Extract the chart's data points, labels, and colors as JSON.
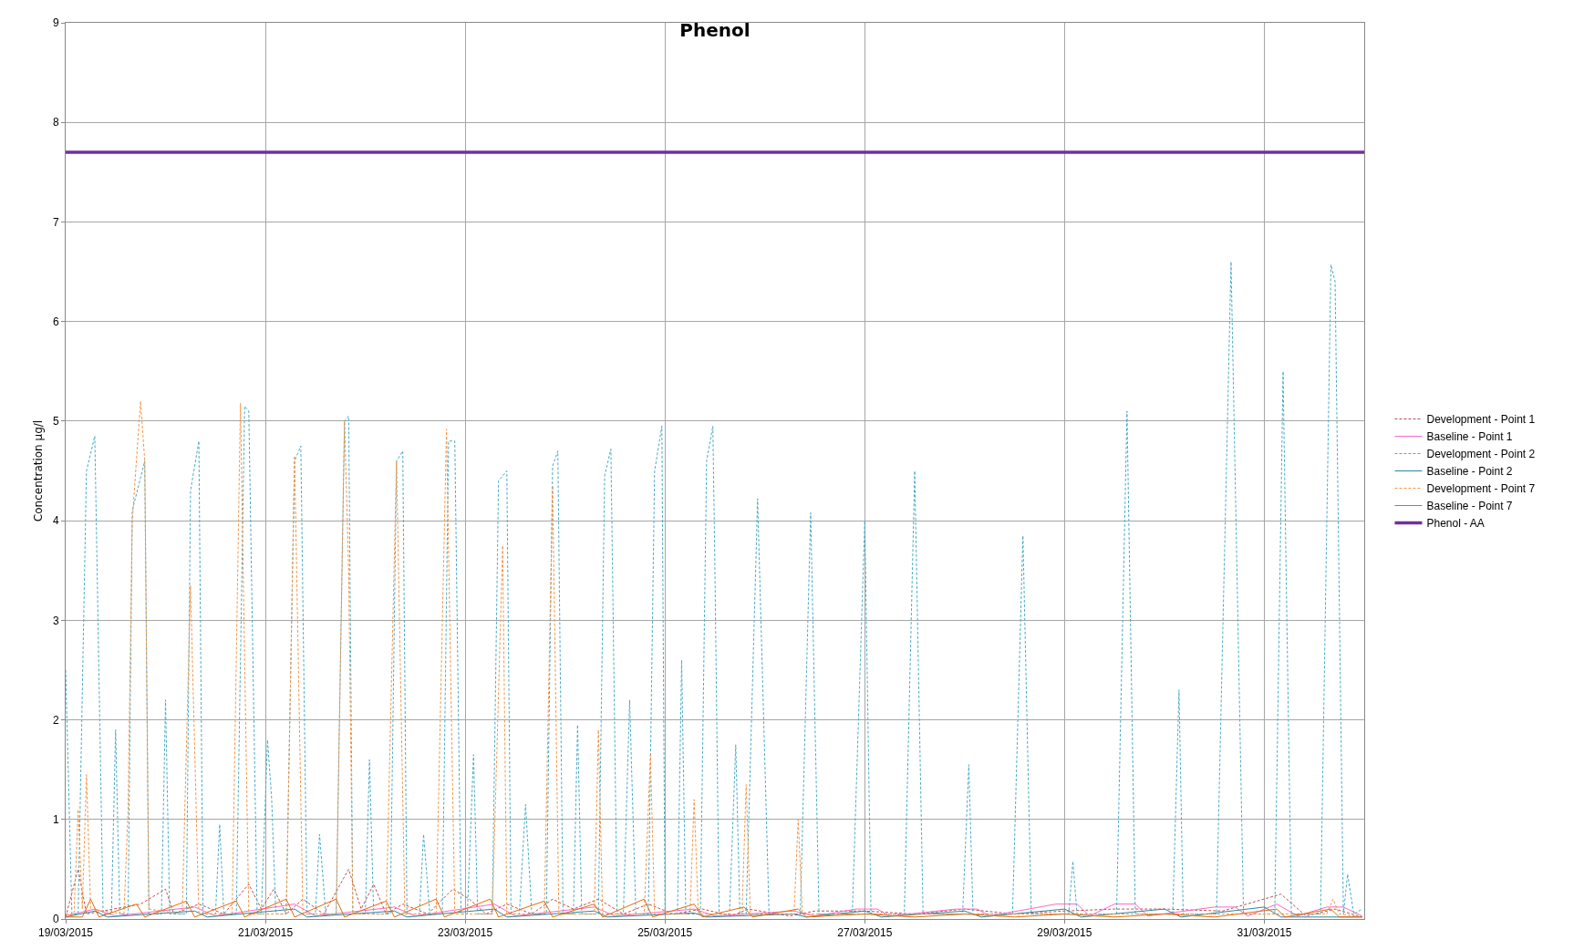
{
  "chart_data": {
    "type": "line",
    "title": "Phenol",
    "ylabel": "Concentration µg/l",
    "xlim": [
      "2015-03-19",
      "2015-04-01"
    ],
    "xticks": [
      {
        "value": "2015-03-19",
        "label": "19/03/2015"
      },
      {
        "value": "2015-03-21",
        "label": "21/03/2015"
      },
      {
        "value": "2015-03-23",
        "label": "23/03/2015"
      },
      {
        "value": "2015-03-25",
        "label": "25/03/2015"
      },
      {
        "value": "2015-03-27",
        "label": "27/03/2015"
      },
      {
        "value": "2015-03-29",
        "label": "29/03/2015"
      },
      {
        "value": "2015-03-31",
        "label": "31/03/2015"
      }
    ],
    "ylim": [
      0,
      9
    ],
    "yticks": [
      0,
      1,
      2,
      3,
      4,
      5,
      6,
      7,
      8,
      9
    ],
    "grid": true,
    "legend": "right",
    "marker": "none",
    "series": [
      {
        "name": "Development - Point 1",
        "color": "#c0504d",
        "line_style": "dashed",
        "x": [
          "2015-03-19T00:00",
          "2015-03-19T03:00",
          "2015-03-19T05:00",
          "2015-03-19T18:00",
          "2015-03-20T00:00",
          "2015-03-20T02:00",
          "2015-03-20T08:00",
          "2015-03-20T14:00",
          "2015-03-20T20:00",
          "2015-03-20T23:00",
          "2015-03-21T02:00",
          "2015-03-21T05:00",
          "2015-03-21T09:00",
          "2015-03-21T14:00",
          "2015-03-21T20:00",
          "2015-03-21T23:00",
          "2015-03-22T02:00",
          "2015-03-22T05:00",
          "2015-03-22T09:00",
          "2015-03-22T15:00",
          "2015-03-22T21:00",
          "2015-03-23T01:00",
          "2015-03-23T05:00",
          "2015-03-23T10:00",
          "2015-03-23T16:00",
          "2015-03-23T21:00",
          "2015-03-24T02:00",
          "2015-03-24T08:00",
          "2015-03-24T14:00",
          "2015-03-24T20:00",
          "2015-03-25T02:00",
          "2015-03-25T09:00",
          "2015-03-25T16:00",
          "2015-03-25T20:00",
          "2015-03-26T06:00",
          "2015-03-26T12:00",
          "2015-03-27T00:00",
          "2015-03-27T12:00",
          "2015-03-28T00:00",
          "2015-03-28T12:00",
          "2015-03-29T00:00",
          "2015-03-29T12:00",
          "2015-03-30T00:00",
          "2015-03-30T14:00",
          "2015-03-31T04:00",
          "2015-03-31T10:00",
          "2015-03-31T17:00",
          "2015-03-31T23:30"
        ],
        "values": [
          0.02,
          0.5,
          0.05,
          0.15,
          0.3,
          0.05,
          0.15,
          0.05,
          0.35,
          0.1,
          0.3,
          0.05,
          0.2,
          0.05,
          0.5,
          0.1,
          0.35,
          0.05,
          0.15,
          0.05,
          0.3,
          0.2,
          0.05,
          0.15,
          0.05,
          0.2,
          0.1,
          0.2,
          0.05,
          0.15,
          0.05,
          0.1,
          0.03,
          0.1,
          0.03,
          0.08,
          0.08,
          0.05,
          0.1,
          0.05,
          0.08,
          0.1,
          0.1,
          0.08,
          0.25,
          0.03,
          0.1,
          0.02
        ]
      },
      {
        "name": "Baseline - Point 1",
        "color": "#ff66cc",
        "line_style": "solid",
        "x": [
          "2015-03-19T00:00",
          "2015-03-19T07:00",
          "2015-03-19T12:00",
          "2015-03-20T07:00",
          "2015-03-20T12:00",
          "2015-03-21T07:00",
          "2015-03-21T12:00",
          "2015-03-22T07:00",
          "2015-03-22T12:00",
          "2015-03-23T07:00",
          "2015-03-23T12:00",
          "2015-03-24T07:00",
          "2015-03-24T12:00",
          "2015-03-25T07:00",
          "2015-03-25T12:00",
          "2015-03-26T07:00",
          "2015-03-26T12:00",
          "2015-03-26T22:00",
          "2015-03-27T03:00",
          "2015-03-27T06:00",
          "2015-03-27T22:00",
          "2015-03-28T03:00",
          "2015-03-28T06:00",
          "2015-03-28T22:00",
          "2015-03-29T03:00",
          "2015-03-29T06:00",
          "2015-03-29T12:00",
          "2015-03-29T17:00",
          "2015-03-29T20:00",
          "2015-03-30T12:00",
          "2015-03-30T17:00",
          "2015-03-30T20:00",
          "2015-03-31T03:00",
          "2015-03-31T08:00",
          "2015-03-31T15:00",
          "2015-03-31T19:00",
          "2015-03-31T23:30"
        ],
        "values": [
          0.03,
          0.1,
          0.03,
          0.12,
          0.03,
          0.15,
          0.03,
          0.12,
          0.03,
          0.15,
          0.03,
          0.12,
          0.03,
          0.1,
          0.03,
          0.08,
          0.03,
          0.1,
          0.1,
          0.03,
          0.1,
          0.1,
          0.03,
          0.15,
          0.15,
          0.03,
          0.15,
          0.15,
          0.03,
          0.12,
          0.12,
          0.03,
          0.15,
          0.03,
          0.12,
          0.12,
          0.03
        ]
      },
      {
        "name": "Development - Point 2",
        "color": "#4bacc6",
        "line_style": "dashed",
        "x": [
          "2015-03-19T00:00",
          "2015-03-19T01:30",
          "2015-03-19T03:00",
          "2015-03-19T05:00",
          "2015-03-19T07:00",
          "2015-03-19T09:00",
          "2015-03-19T11:00",
          "2015-03-19T12:00",
          "2015-03-19T13:00",
          "2015-03-19T15:00",
          "2015-03-19T16:00",
          "2015-03-19T19:00",
          "2015-03-19T20:00",
          "2015-03-19T23:00",
          "2015-03-20T00:00",
          "2015-03-20T01:00",
          "2015-03-20T05:00",
          "2015-03-20T06:00",
          "2015-03-20T08:00",
          "2015-03-20T09:00",
          "2015-03-20T12:00",
          "2015-03-20T13:00",
          "2015-03-20T14:00",
          "2015-03-20T17:00",
          "2015-03-20T19:00",
          "2015-03-20T20:00",
          "2015-03-20T22:00",
          "2015-03-20T23:00",
          "2015-03-21T00:30",
          "2015-03-21T01:30",
          "2015-03-21T02:30",
          "2015-03-21T05:00",
          "2015-03-21T07:00",
          "2015-03-21T08:30",
          "2015-03-21T10:00",
          "2015-03-21T12:00",
          "2015-03-21T13:00",
          "2015-03-21T14:30",
          "2015-03-21T17:00",
          "2015-03-21T19:00",
          "2015-03-21T20:00",
          "2015-03-21T21:00",
          "2015-03-22T00:00",
          "2015-03-22T01:00",
          "2015-03-22T02:00",
          "2015-03-22T06:00",
          "2015-03-22T07:30",
          "2015-03-22T09:00",
          "2015-03-22T10:00",
          "2015-03-22T13:00",
          "2015-03-22T14:00",
          "2015-03-22T15:30",
          "2015-03-22T18:30",
          "2015-03-22T20:00",
          "2015-03-22T21:30",
          "2015-03-22T23:00",
          "2015-03-23T00:30",
          "2015-03-23T02:00",
          "2015-03-23T03:00",
          "2015-03-23T06:30",
          "2015-03-23T08:00",
          "2015-03-23T10:00",
          "2015-03-23T11:00",
          "2015-03-23T13:00",
          "2015-03-23T14:30",
          "2015-03-23T16:00",
          "2015-03-23T19:30",
          "2015-03-23T21:00",
          "2015-03-23T22:15",
          "2015-03-23T23:30",
          "2015-03-24T02:00",
          "2015-03-24T03:00",
          "2015-03-24T04:00",
          "2015-03-24T08:00",
          "2015-03-24T09:30",
          "2015-03-24T11:00",
          "2015-03-24T12:30",
          "2015-03-24T14:00",
          "2015-03-24T15:30",
          "2015-03-24T17:00",
          "2015-03-24T20:00",
          "2015-03-24T21:30",
          "2015-03-24T23:15",
          "2015-03-25T00:00",
          "2015-03-25T03:00",
          "2015-03-25T04:00",
          "2015-03-25T05:00",
          "2015-03-25T08:30",
          "2015-03-25T10:00",
          "2015-03-25T11:30",
          "2015-03-25T12:00",
          "2015-03-25T13:00",
          "2015-03-25T15:30",
          "2015-03-25T17:00",
          "2015-03-25T18:00",
          "2015-03-25T19:30",
          "2015-03-25T22:15",
          "2015-03-26T01:00",
          "2015-03-26T08:30",
          "2015-03-26T11:00",
          "2015-03-26T13:00",
          "2015-03-26T21:00",
          "2015-03-27T00:00",
          "2015-03-27T01:30",
          "2015-03-27T09:30",
          "2015-03-27T12:00",
          "2015-03-27T14:00",
          "2015-03-27T23:30",
          "2015-03-28T01:00",
          "2015-03-28T02:00",
          "2015-03-28T11:30",
          "2015-03-28T14:00",
          "2015-03-28T16:00",
          "2015-03-29T01:00",
          "2015-03-29T02:00",
          "2015-03-29T03:00",
          "2015-03-29T12:30",
          "2015-03-29T15:00",
          "2015-03-29T17:00",
          "2015-03-30T02:00",
          "2015-03-30T03:30",
          "2015-03-30T04:30",
          "2015-03-30T12:30",
          "2015-03-30T16:00",
          "2015-03-30T19:00",
          "2015-03-31T02:30",
          "2015-03-31T04:30",
          "2015-03-31T06:30",
          "2015-03-31T13:30",
          "2015-03-31T16:00",
          "2015-03-31T17:00",
          "2015-03-31T19:00",
          "2015-03-31T20:00",
          "2015-03-31T21:30",
          "2015-03-31T23:30"
        ],
        "values": [
          2.5,
          0.05,
          0.05,
          4.5,
          4.85,
          0.05,
          0.05,
          1.9,
          0.05,
          0.05,
          4.1,
          4.6,
          0.05,
          0.05,
          2.2,
          0.05,
          0.05,
          4.3,
          4.8,
          0.05,
          0.05,
          0.95,
          0.05,
          0.05,
          5.15,
          5.1,
          0.05,
          0.05,
          1.8,
          1.2,
          0.05,
          0.05,
          4.6,
          4.75,
          0.05,
          0.05,
          0.85,
          0.05,
          0.05,
          5.0,
          5.05,
          0.05,
          0.05,
          1.6,
          0.05,
          0.05,
          4.6,
          4.7,
          0.05,
          0.05,
          0.85,
          0.05,
          0.05,
          4.8,
          4.8,
          0.05,
          0.05,
          1.65,
          0.05,
          0.05,
          4.4,
          4.5,
          0.05,
          0.05,
          1.15,
          0.05,
          0.05,
          4.55,
          4.7,
          0.05,
          0.05,
          1.95,
          0.05,
          0.05,
          4.45,
          4.72,
          0.05,
          0.05,
          2.2,
          0.05,
          0.05,
          4.5,
          4.95,
          0.05,
          0.05,
          2.6,
          0.05,
          0.05,
          4.6,
          4.95,
          3.5,
          0.05,
          0.05,
          1.75,
          0.05,
          0.05,
          4.22,
          0.05,
          0.05,
          4.08,
          0.05,
          0.05,
          4.0,
          0.05,
          0.05,
          4.5,
          0.05,
          0.05,
          1.55,
          0.05,
          0.05,
          3.85,
          0.05,
          0.05,
          0.58,
          0.05,
          0.05,
          5.1,
          0.05,
          0.05,
          2.3,
          0.05,
          0.05,
          6.6,
          0.05,
          0.05,
          5.5,
          0.05,
          0.05,
          6.57,
          6.4,
          0.05,
          0.45,
          0.05,
          0.1
        ]
      },
      {
        "name": "Baseline - Point 2",
        "color": "#31859c",
        "line_style": "solid",
        "x": [
          "2015-03-19T00:00",
          "2015-03-19T07:00",
          "2015-03-19T10:00",
          "2015-03-20T07:00",
          "2015-03-20T10:00",
          "2015-03-21T07:00",
          "2015-03-21T10:00",
          "2015-03-22T07:00",
          "2015-03-22T10:00",
          "2015-03-23T07:00",
          "2015-03-23T10:00",
          "2015-03-24T07:00",
          "2015-03-24T10:00",
          "2015-03-25T07:00",
          "2015-03-25T10:00",
          "2015-03-26T07:00",
          "2015-03-26T10:00",
          "2015-03-27T00:00",
          "2015-03-27T04:00",
          "2015-03-28T00:00",
          "2015-03-28T04:00",
          "2015-03-29T00:00",
          "2015-03-29T04:00",
          "2015-03-30T00:00",
          "2015-03-30T04:00",
          "2015-03-31T00:00",
          "2015-03-31T04:00",
          "2015-03-31T23:30"
        ],
        "values": [
          0.02,
          0.08,
          0.02,
          0.08,
          0.02,
          0.1,
          0.02,
          0.08,
          0.02,
          0.1,
          0.02,
          0.08,
          0.02,
          0.06,
          0.02,
          0.05,
          0.02,
          0.08,
          0.02,
          0.08,
          0.02,
          0.1,
          0.02,
          0.1,
          0.02,
          0.12,
          0.02,
          0.02
        ]
      },
      {
        "name": "Development - Point 7",
        "color": "#f79646",
        "line_style": "dashed",
        "x": [
          "2015-03-19T00:00",
          "2015-03-19T02:00",
          "2015-03-19T03:00",
          "2015-03-19T04:00",
          "2015-03-19T05:00",
          "2015-03-19T06:00",
          "2015-03-19T14:00",
          "2015-03-19T15:00",
          "2015-03-19T16:00",
          "2015-03-19T18:00",
          "2015-03-19T19:00",
          "2015-03-19T20:00",
          "2015-03-20T04:00",
          "2015-03-20T06:00",
          "2015-03-20T08:00",
          "2015-03-20T16:00",
          "2015-03-20T18:00",
          "2015-03-20T20:00",
          "2015-03-21T05:00",
          "2015-03-21T07:00",
          "2015-03-21T09:00",
          "2015-03-21T17:00",
          "2015-03-21T19:00",
          "2015-03-21T20:00",
          "2015-03-21T21:00",
          "2015-03-22T05:00",
          "2015-03-22T07:30",
          "2015-03-22T09:30",
          "2015-03-22T17:00",
          "2015-03-22T19:30",
          "2015-03-22T21:30",
          "2015-03-23T06:30",
          "2015-03-23T09:00",
          "2015-03-23T10:00",
          "2015-03-23T19:00",
          "2015-03-23T21:00",
          "2015-03-23T22:30",
          "2015-03-24T07:00",
          "2015-03-24T08:00",
          "2015-03-24T09:00",
          "2015-03-24T19:00",
          "2015-03-24T20:30",
          "2015-03-24T21:30",
          "2015-03-25T06:00",
          "2015-03-25T07:00",
          "2015-03-25T08:00",
          "2015-03-25T18:30",
          "2015-03-25T19:30",
          "2015-03-25T20:30",
          "2015-03-26T07:00",
          "2015-03-26T08:00",
          "2015-03-26T09:00",
          "2015-03-31T15:00",
          "2015-03-31T16:30",
          "2015-03-31T18:00",
          "2015-03-31T23:30"
        ],
        "values": [
          0.05,
          0.05,
          1.1,
          0.1,
          1.45,
          0.1,
          0.05,
          1.1,
          4.0,
          5.2,
          4.6,
          0.1,
          0.05,
          3.35,
          0.05,
          0.05,
          5.18,
          0.05,
          0.05,
          4.65,
          0.05,
          0.05,
          5.0,
          3.5,
          0.05,
          0.05,
          4.6,
          0.05,
          0.05,
          4.92,
          0.05,
          0.05,
          3.75,
          0.05,
          0.05,
          4.35,
          0.05,
          0.05,
          1.9,
          0.05,
          0.05,
          1.65,
          0.05,
          0.05,
          1.2,
          0.05,
          0.05,
          1.35,
          0.05,
          0.05,
          1.0,
          0.05,
          0.05,
          0.2,
          0.05,
          0.02
        ]
      },
      {
        "name": "Baseline - Point 7",
        "color": "#e46c0a",
        "line_style": "solid",
        "x": [
          "2015-03-19T00:00",
          "2015-03-19T04:00",
          "2015-03-19T06:00",
          "2015-03-19T08:00",
          "2015-03-19T17:00",
          "2015-03-19T19:00",
          "2015-03-20T05:00",
          "2015-03-20T07:00",
          "2015-03-20T17:00",
          "2015-03-20T19:00",
          "2015-03-21T05:00",
          "2015-03-21T07:00",
          "2015-03-21T17:00",
          "2015-03-21T19:00",
          "2015-03-22T05:00",
          "2015-03-22T07:00",
          "2015-03-22T17:00",
          "2015-03-22T19:00",
          "2015-03-23T06:00",
          "2015-03-23T08:00",
          "2015-03-23T19:00",
          "2015-03-23T21:00",
          "2015-03-24T07:00",
          "2015-03-24T09:00",
          "2015-03-24T19:00",
          "2015-03-24T21:00",
          "2015-03-25T07:00",
          "2015-03-25T09:00",
          "2015-03-25T19:00",
          "2015-03-25T21:00",
          "2015-03-26T08:00",
          "2015-03-26T10:00",
          "2015-03-27T00:00",
          "2015-03-27T12:00",
          "2015-03-28T00:00",
          "2015-03-28T12:00",
          "2015-03-29T00:00",
          "2015-03-29T12:00",
          "2015-03-30T00:00",
          "2015-03-30T12:00",
          "2015-03-31T03:00",
          "2015-03-31T05:00",
          "2015-03-31T16:00",
          "2015-03-31T18:00",
          "2015-03-31T23:30"
        ],
        "values": [
          0.02,
          0.02,
          0.2,
          0.02,
          0.15,
          0.02,
          0.18,
          0.02,
          0.18,
          0.02,
          0.2,
          0.02,
          0.2,
          0.02,
          0.18,
          0.02,
          0.2,
          0.02,
          0.2,
          0.02,
          0.18,
          0.02,
          0.15,
          0.02,
          0.2,
          0.02,
          0.15,
          0.02,
          0.12,
          0.02,
          0.1,
          0.02,
          0.05,
          0.02,
          0.05,
          0.02,
          0.05,
          0.02,
          0.05,
          0.02,
          0.1,
          0.02,
          0.1,
          0.02,
          0.02
        ]
      },
      {
        "name": "Phenol - AA",
        "color": "#7030a0",
        "line_style": "solid",
        "x": [
          "2015-03-19T00:00",
          "2015-04-01T00:00"
        ],
        "values": [
          7.7,
          7.7
        ]
      }
    ]
  }
}
